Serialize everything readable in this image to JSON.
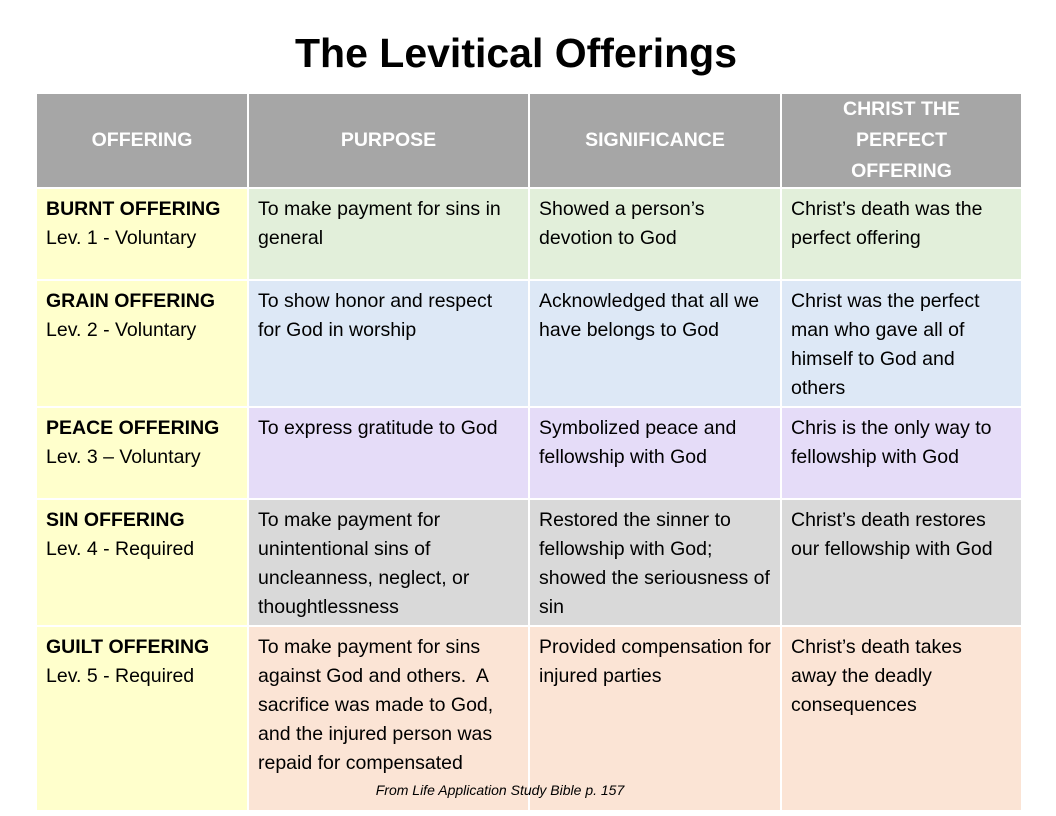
{
  "title": "The Levitical Offerings",
  "table": {
    "headers": [
      "OFFERING",
      "PURPOSE",
      "SIGNIFICANCE",
      "CHRIST THE PERFECT OFFERING"
    ],
    "rows": [
      [
        {
          "name": "BURNT OFFERING",
          "detail": "Lev. 1 - Voluntary"
        },
        "To make payment for sins in general",
        "Showed a person’s devotion to God",
        "Christ’s death was the perfect offering"
      ],
      [
        {
          "name": "GRAIN OFFERING",
          "detail": "Lev. 2 - Voluntary"
        },
        "To show honor and respect for God in worship",
        "Acknowledged that all we have belongs to God",
        "Christ was the perfect man who gave all of himself to God and others"
      ],
      [
        {
          "name": "PEACE OFFERING",
          "detail": "Lev. 3 – Voluntary"
        },
        "To express gratitude to God",
        "Symbolized peace and fellowship with God",
        "Chris is the only way to fellowship with God"
      ],
      [
        {
          "name": "SIN OFFERING",
          "detail": "Lev. 4 - Required"
        },
        "To make payment for unintentional sins of uncleanness, neglect, or thoughtlessness",
        "Restored the sinner to fellowship with God; showed the seriousness of sin",
        "Christ’s death restores our fellowship with God"
      ],
      [
        {
          "name": "GUILT OFFERING",
          "detail": "Lev. 5 - Required"
        },
        "To make payment for sins against God and others.  A sacrifice was made to God, and the injured person was repaid for compensated",
        "Provided compensation for injured parties",
        "Christ’s death takes away the deadly consequences"
      ]
    ]
  },
  "footnote": "From Life Application Study Bible p. 157"
}
